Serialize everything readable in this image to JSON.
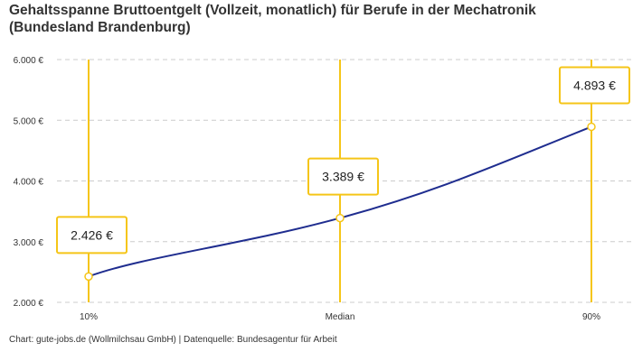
{
  "chart_data": {
    "type": "line",
    "title": "Gehaltsspanne Bruttoentgelt (Vollzeit, monatlich) für Berufe in der Mechatronik (Bundesland Brandenburg)",
    "categories": [
      "10%",
      "Median",
      "90%"
    ],
    "values": [
      2426,
      3389,
      4893
    ],
    "data_labels": [
      "2.426 €",
      "3.389 €",
      "4.893 €"
    ],
    "ylim": [
      2000,
      6000
    ],
    "yticks": [
      2000,
      3000,
      4000,
      5000,
      6000
    ],
    "ytick_labels": [
      "2.000 €",
      "3.000 €",
      "4.000 €",
      "5.000 €",
      "6.000 €"
    ],
    "xlabel": "",
    "ylabel": "",
    "grid": "horizontal dashed",
    "colors": {
      "line": "#1f2d8f",
      "accent": "#f5c518",
      "grid": "#cccccc"
    }
  },
  "source": "Chart: gute-jobs.de (Wollmilchsau GmbH) | Datenquelle: Bundesagentur für Arbeit"
}
